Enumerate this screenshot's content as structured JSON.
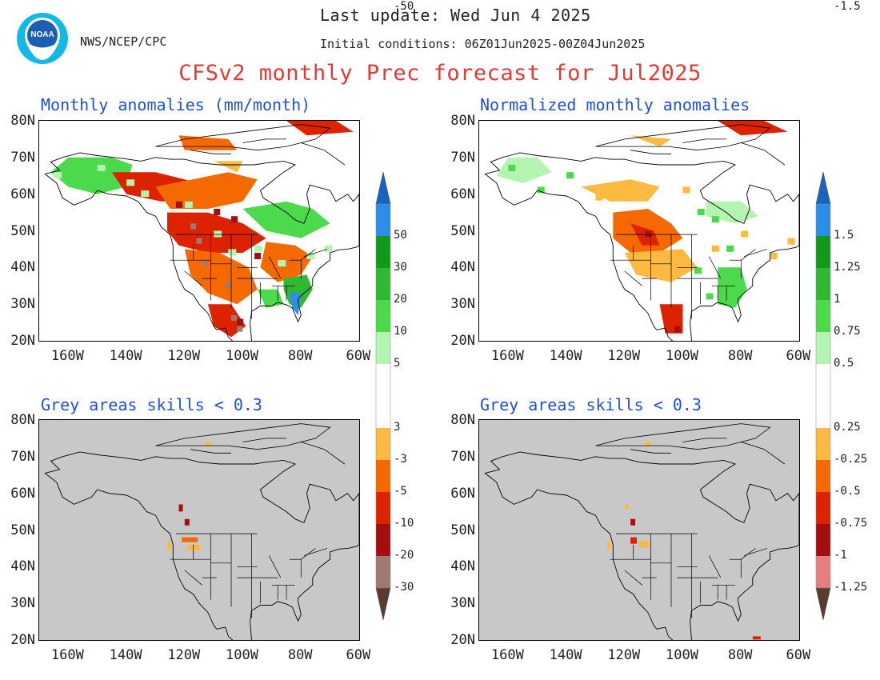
{
  "header": {
    "last_update": "Last update: Wed Jun 4 2025",
    "agency": "NWS/NCEP/CPC",
    "initial_conditions": "Initial conditions: 06Z01Jun2025-00Z04Jun2025",
    "title": "CFSv2 monthly Prec forecast for Jul2025",
    "logo_text": "NOAA"
  },
  "panels": [
    {
      "id": "anom",
      "title": "Monthly anomalies (mm/month)"
    },
    {
      "id": "norm",
      "title": "Normalized monthly anomalies"
    },
    {
      "id": "anom-skill",
      "title": "Grey areas skills < 0.3"
    },
    {
      "id": "norm-skill",
      "title": "Grey areas skills < 0.3"
    }
  ],
  "axes": {
    "latitudes": [
      "80N",
      "70N",
      "60N",
      "50N",
      "40N",
      "30N",
      "20N"
    ],
    "longitudes": [
      "160W",
      "140W",
      "120W",
      "100W",
      "80W",
      "60W"
    ],
    "lat_range": [
      20,
      80
    ],
    "lon_range": [
      -170,
      -60
    ]
  },
  "colorbars": {
    "anomaly": {
      "labels": [
        "50",
        "30",
        "20",
        "10",
        "5",
        "3",
        "-3",
        "-5",
        "-10",
        "-20",
        "-30",
        "-50"
      ],
      "colors": [
        "#1565c0",
        "#2d8ee8",
        "#119a19",
        "#2fb832",
        "#4cd94c",
        "#b3f5b0",
        "#ffffff",
        "#fdb940",
        "#f46a00",
        "#dd2200",
        "#a50e0e",
        "#9e7a70",
        "#5a3b2e"
      ]
    },
    "normalized": {
      "labels": [
        "1.5",
        "1.25",
        "1",
        "0.75",
        "0.5",
        "0.25",
        "-0.25",
        "-0.5",
        "-0.75",
        "-1",
        "-1.25",
        "-1.5"
      ],
      "colors": [
        "#1565c0",
        "#2d8ee8",
        "#119a19",
        "#2fb832",
        "#4cd94c",
        "#b3f5b0",
        "#ffffff",
        "#fdb940",
        "#f46a00",
        "#dd2200",
        "#a50e0e",
        "#e77e7e",
        "#5a3b2e"
      ]
    }
  },
  "colors": {
    "title": "#e53935",
    "panel_title": "#1f4fd8",
    "low_skill_grey": "#c8c8c8"
  }
}
